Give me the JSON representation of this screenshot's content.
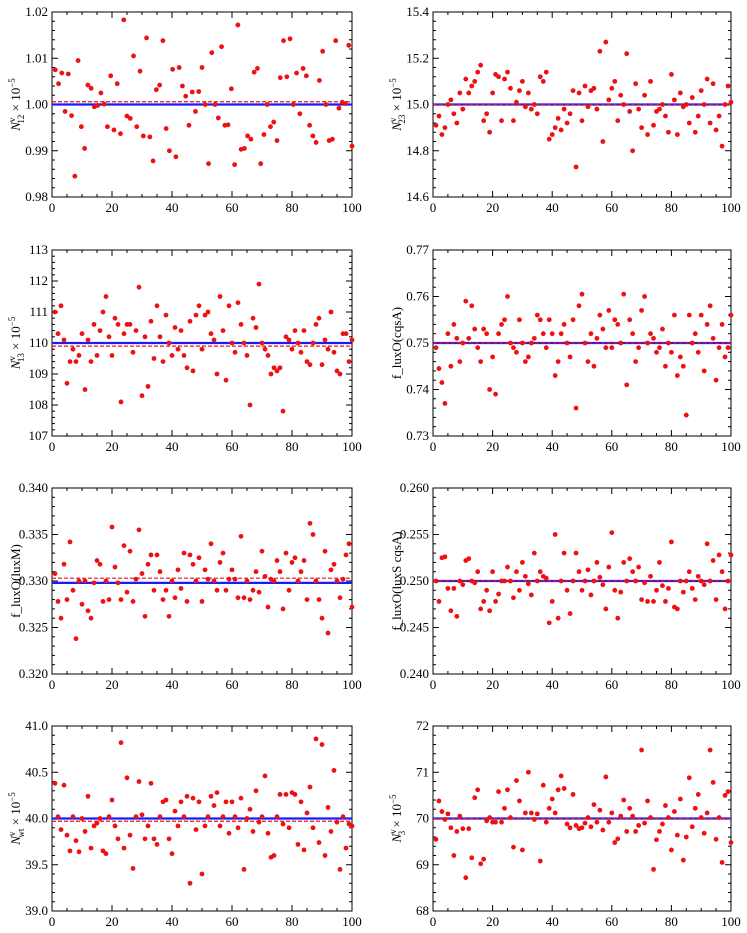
{
  "colors": {
    "points": "#ee1111",
    "blue_line": "#1a1aff",
    "red_line": "#ee1111",
    "frame": "#000000"
  },
  "chart_data": [
    {
      "type": "scatter",
      "ylabel": "N^v_12 × 10^−5",
      "ylabel_base": "N",
      "ylabel_sup": "v",
      "ylabel_sub": "12",
      "ylabel_tail": " × 10",
      "ylabel_exp": "−5",
      "xlim": [
        0,
        100
      ],
      "ylim": [
        0.98,
        1.02
      ],
      "xticks": [
        "0",
        "20",
        "40",
        "60",
        "80",
        "100"
      ],
      "yticks": [
        "0.98",
        "0.99",
        "1.00",
        "1.01",
        "1.02"
      ],
      "blue_line": 1.0,
      "red_line": 1.0006,
      "points": [
        1.0075,
        1.0045,
        1.0068,
        0.9985,
        1.0066,
        0.9976,
        0.9845,
        1.0095,
        0.9952,
        0.9905,
        1.0042,
        1.0035,
        0.9995,
        0.9998,
        1.0025,
        1.0001,
        0.9952,
        1.0062,
        0.9945,
        1.0045,
        0.9937,
        1.0183,
        0.9975,
        0.997,
        1.0105,
        0.9952,
        1.0072,
        0.9932,
        1.0144,
        0.993,
        0.9878,
        1.0032,
        1.0042,
        1.0138,
        0.9948,
        0.99,
        1.0076,
        0.9887,
        1.008,
        1.004,
        1.0018,
        0.9955,
        1.0027,
        0.9985,
        1.0028,
        1.008,
        1.0,
        0.9872,
        1.0112,
        1.0,
        0.9971,
        1.0125,
        0.9955,
        0.9956,
        1.0034,
        0.987,
        1.0172,
        0.9903,
        0.9905,
        0.9932,
        0.9925,
        1.007,
        1.0078,
        0.9872,
        0.9935,
        1.0,
        0.9952,
        0.9962,
        0.9922,
        1.0058,
        1.0138,
        1.006,
        1.0142,
        1.0,
        1.0068,
        0.998,
        1.0078,
        1.0062,
        0.9955,
        0.9932,
        0.9918,
        1.0052,
        1.0115,
        1.0,
        0.9922,
        0.9925,
        1.0138,
        0.9992,
        1.0005,
        1.0002,
        1.0128,
        0.991
      ]
    },
    {
      "type": "scatter",
      "ylabel": "N^v_23 × 10^−5",
      "ylabel_base": "N",
      "ylabel_sup": "v",
      "ylabel_sub": "23",
      "ylabel_tail": " × 10",
      "ylabel_exp": "−5",
      "xlim": [
        0,
        100
      ],
      "ylim": [
        14.6,
        15.4
      ],
      "xticks": [
        "0",
        "20",
        "40",
        "60",
        "80",
        "100"
      ],
      "yticks": [
        "14.6",
        "14.8",
        "15.0",
        "15.2",
        "15.4"
      ],
      "blue_line": 15.0,
      "red_line": 15.0,
      "points": [
        14.91,
        14.95,
        14.87,
        14.9,
        15.0,
        15.02,
        14.96,
        14.92,
        15.05,
        14.98,
        15.11,
        15.05,
        15.08,
        15.1,
        15.14,
        15.17,
        14.93,
        14.96,
        14.88,
        15.05,
        15.13,
        15.12,
        14.93,
        15.11,
        15.14,
        15.07,
        14.93,
        15.01,
        15.06,
        15.1,
        14.99,
        15.05,
        14.98,
        15.0,
        14.96,
        15.12,
        15.1,
        15.14,
        14.85,
        14.87,
        14.9,
        14.94,
        14.89,
        14.98,
        14.92,
        14.96,
        15.06,
        14.73,
        15.05,
        14.93,
        15.08,
        14.99,
        15.06,
        15.07,
        14.98,
        15.23,
        14.84,
        15.27,
        15.02,
        15.07,
        15.1,
        14.93,
        15.04,
        15.0,
        15.22,
        14.97,
        14.8,
        15.09,
        14.98,
        14.9,
        15.04,
        14.87,
        15.1,
        14.91,
        14.97,
        14.98,
        15.0,
        14.95,
        14.88,
        15.13,
        15.02,
        14.87,
        15.05,
        14.99,
        15.0,
        14.92,
        15.03,
        14.88,
        14.95,
        15.06,
        15.0,
        15.11,
        14.92,
        15.09,
        14.89,
        14.95,
        14.82,
        15.0,
        15.08,
        15.01
      ]
    },
    {
      "type": "scatter",
      "ylabel": "N^v_13 × 10^−5",
      "ylabel_base": "N",
      "ylabel_sup": "v",
      "ylabel_sub": "13",
      "ylabel_tail": " × 10",
      "ylabel_exp": "−5",
      "xlim": [
        0,
        100
      ],
      "ylim": [
        107,
        113
      ],
      "xticks": [
        "0",
        "20",
        "40",
        "60",
        "80",
        "100"
      ],
      "yticks": [
        "107",
        "108",
        "109",
        "110",
        "111",
        "112",
        "113"
      ],
      "blue_line": 110.0,
      "red_line": 109.9,
      "points": [
        111.0,
        110.3,
        111.2,
        110.1,
        108.7,
        109.4,
        109.8,
        109.4,
        109.6,
        110.3,
        108.5,
        110.1,
        109.4,
        110.6,
        109.6,
        110.4,
        111.0,
        111.5,
        110.2,
        109.6,
        110.8,
        110.6,
        108.1,
        110.3,
        110.6,
        110.6,
        109.7,
        110.4,
        111.8,
        108.3,
        110.2,
        108.6,
        110.7,
        109.5,
        111.2,
        110.2,
        109.4,
        110.9,
        110.0,
        109.6,
        110.5,
        109.8,
        110.4,
        109.6,
        109.2,
        110.7,
        109.1,
        110.9,
        111.2,
        109.8,
        110.9,
        111.0,
        110.3,
        110.1,
        109.0,
        111.5,
        110.4,
        108.8,
        111.2,
        110.0,
        109.7,
        111.3,
        110.6,
        110.0,
        109.6,
        108.0,
        110.8,
        110.5,
        111.9,
        110.0,
        109.8,
        109.6,
        109.0,
        109.2,
        109.1,
        109.2,
        107.8,
        110.2,
        110.1,
        109.8,
        110.4,
        110.0,
        109.7,
        110.4,
        109.4,
        109.3,
        110.0,
        110.6,
        110.8,
        109.3,
        110.1,
        109.8,
        111.0,
        109.7,
        109.1,
        109.0,
        110.3,
        110.3,
        109.4,
        110.1
      ]
    },
    {
      "type": "scatter",
      "ylabel": "f_luxO(cqsA)",
      "xlim": [
        0,
        100
      ],
      "ylim": [
        0.73,
        0.77
      ],
      "xticks": [
        "0",
        "20",
        "40",
        "60",
        "80",
        "100"
      ],
      "yticks": [
        "0.73",
        "0.74",
        "0.75",
        "0.76",
        "0.77"
      ],
      "blue_line": 0.75,
      "red_line": 0.75,
      "points": [
        0.749,
        0.7445,
        0.7415,
        0.737,
        0.752,
        0.745,
        0.754,
        0.751,
        0.746,
        0.75,
        0.759,
        0.751,
        0.758,
        0.753,
        0.749,
        0.746,
        0.753,
        0.752,
        0.74,
        0.747,
        0.739,
        0.752,
        0.754,
        0.755,
        0.76,
        0.75,
        0.749,
        0.748,
        0.755,
        0.75,
        0.746,
        0.747,
        0.75,
        0.751,
        0.756,
        0.755,
        0.752,
        0.749,
        0.755,
        0.752,
        0.743,
        0.746,
        0.752,
        0.754,
        0.75,
        0.747,
        0.755,
        0.736,
        0.758,
        0.7605,
        0.75,
        0.746,
        0.752,
        0.745,
        0.751,
        0.756,
        0.753,
        0.749,
        0.757,
        0.749,
        0.755,
        0.754,
        0.75,
        0.7605,
        0.741,
        0.755,
        0.752,
        0.746,
        0.749,
        0.757,
        0.76,
        0.75,
        0.752,
        0.751,
        0.748,
        0.749,
        0.753,
        0.745,
        0.75,
        0.748,
        0.756,
        0.743,
        0.747,
        0.745,
        0.7345,
        0.756,
        0.75,
        0.752,
        0.748,
        0.756,
        0.744,
        0.754,
        0.758,
        0.751,
        0.742,
        0.749,
        0.754,
        0.747,
        0.749,
        0.756
      ]
    },
    {
      "type": "scatter",
      "ylabel": "f_luxO(luxM)",
      "xlim": [
        0,
        100
      ],
      "ylim": [
        0.32,
        0.34
      ],
      "xticks": [
        "0",
        "20",
        "40",
        "60",
        "80",
        "100"
      ],
      "yticks": [
        "0.320",
        "0.325",
        "0.330",
        "0.335",
        "0.340"
      ],
      "blue_line": 0.3298,
      "red_line": 0.3303,
      "points": [
        0.3308,
        0.3278,
        0.326,
        0.3318,
        0.328,
        0.3342,
        0.329,
        0.3238,
        0.33,
        0.3275,
        0.33,
        0.3268,
        0.326,
        0.3298,
        0.3322,
        0.3318,
        0.3278,
        0.33,
        0.328,
        0.3358,
        0.3315,
        0.3298,
        0.328,
        0.3338,
        0.3288,
        0.3332,
        0.3278,
        0.3302,
        0.3355,
        0.3308,
        0.3262,
        0.3318,
        0.3328,
        0.329,
        0.3328,
        0.331,
        0.328,
        0.329,
        0.3262,
        0.33,
        0.3282,
        0.3312,
        0.3292,
        0.333,
        0.3278,
        0.3328,
        0.3318,
        0.33,
        0.3325,
        0.3278,
        0.3312,
        0.3302,
        0.334,
        0.33,
        0.329,
        0.332,
        0.333,
        0.329,
        0.3302,
        0.3312,
        0.3302,
        0.3282,
        0.3348,
        0.3282,
        0.33,
        0.328,
        0.329,
        0.331,
        0.3288,
        0.3332,
        0.3305,
        0.3272,
        0.3302,
        0.33,
        0.3322,
        0.331,
        0.327,
        0.333,
        0.329,
        0.332,
        0.3325,
        0.33,
        0.331,
        0.3322,
        0.328,
        0.3362,
        0.335,
        0.33,
        0.328,
        0.326,
        0.3332,
        0.3244,
        0.3312,
        0.3318,
        0.33,
        0.3282,
        0.3302,
        0.3328,
        0.334,
        0.3272
      ]
    },
    {
      "type": "scatter",
      "ylabel": "f_luxO(luxS cqsA)",
      "xlim": [
        0,
        100
      ],
      "ylim": [
        0.24,
        0.26
      ],
      "xticks": [
        "0",
        "20",
        "40",
        "60",
        "80",
        "100"
      ],
      "yticks": [
        "0.240",
        "0.245",
        "0.250",
        "0.255",
        "0.260"
      ],
      "blue_line": 0.25,
      "red_line": 0.25,
      "points": [
        0.25,
        0.2478,
        0.2525,
        0.2526,
        0.2492,
        0.2468,
        0.2492,
        0.2462,
        0.25,
        0.2496,
        0.2522,
        0.2524,
        0.25,
        0.2498,
        0.251,
        0.247,
        0.2478,
        0.249,
        0.2468,
        0.251,
        0.2478,
        0.2486,
        0.25,
        0.25,
        0.2515,
        0.25,
        0.2482,
        0.251,
        0.249,
        0.252,
        0.2505,
        0.2497,
        0.2485,
        0.253,
        0.25,
        0.251,
        0.2505,
        0.2503,
        0.2455,
        0.2478,
        0.255,
        0.246,
        0.25,
        0.253,
        0.249,
        0.2465,
        0.25,
        0.253,
        0.251,
        0.249,
        0.25,
        0.2512,
        0.2485,
        0.25,
        0.252,
        0.2504,
        0.2496,
        0.247,
        0.2515,
        0.2552,
        0.249,
        0.246,
        0.2488,
        0.252,
        0.25,
        0.2524,
        0.251,
        0.25,
        0.2515,
        0.248,
        0.2498,
        0.2478,
        0.2505,
        0.2478,
        0.249,
        0.252,
        0.2495,
        0.2478,
        0.2492,
        0.2542,
        0.2472,
        0.247,
        0.25,
        0.2488,
        0.25,
        0.251,
        0.2492,
        0.248,
        0.2505,
        0.25,
        0.2496,
        0.254,
        0.25,
        0.2522,
        0.248,
        0.2528,
        0.251,
        0.247,
        0.25,
        0.2528
      ]
    },
    {
      "type": "scatter",
      "ylabel": "N^v_wt × 10^−5",
      "ylabel_base": "N",
      "ylabel_sup": "v",
      "ylabel_sub": "wt",
      "ylabel_tail": " × 10",
      "ylabel_exp": "−5",
      "xlim": [
        0,
        100
      ],
      "ylim": [
        39.0,
        41.0
      ],
      "xticks": [
        "0",
        "20",
        "40",
        "60",
        "80",
        "100"
      ],
      "yticks": [
        "39.0",
        "39.5",
        "40.0",
        "40.5",
        "41.0"
      ],
      "blue_line": 40.0,
      "red_line": 39.97,
      "points": [
        40.38,
        40.02,
        39.88,
        40.36,
        39.82,
        39.65,
        40.02,
        39.76,
        39.64,
        40.0,
        39.86,
        40.24,
        39.68,
        39.92,
        39.95,
        40.0,
        39.65,
        39.62,
        40.02,
        40.2,
        39.92,
        39.78,
        40.82,
        39.68,
        40.44,
        39.82,
        39.46,
        40.02,
        40.4,
        40.04,
        39.78,
        39.92,
        40.38,
        39.78,
        39.72,
        40.02,
        40.18,
        40.2,
        39.78,
        39.62,
        40.08,
        39.92,
        40.18,
        40.02,
        40.24,
        39.3,
        40.22,
        39.88,
        40.18,
        39.4,
        39.92,
        40.02,
        40.24,
        40.14,
        40.28,
        39.92,
        40.02,
        40.18,
        39.84,
        40.18,
        40.02,
        39.9,
        40.22,
        39.45,
        40.0,
        40.1,
        39.86,
        40.3,
        39.96,
        40.02,
        40.46,
        39.84,
        39.58,
        39.6,
        40.02,
        40.26,
        39.94,
        40.26,
        39.9,
        40.28,
        40.26,
        39.72,
        40.18,
        39.66,
        40.06,
        40.34,
        39.9,
        40.86,
        39.74,
        40.8,
        39.6,
        40.12,
        39.86,
        40.52,
        39.96,
        39.45,
        40.02,
        39.68,
        39.94,
        39.92
      ]
    },
    {
      "type": "scatter",
      "ylabel": "N^v_3 × 10^−5",
      "ylabel_base": "N",
      "ylabel_sup": "v",
      "ylabel_sub": "3",
      "ylabel_tail": " × 10",
      "ylabel_exp": "−5",
      "xlim": [
        0,
        100
      ],
      "ylim": [
        68,
        72
      ],
      "xticks": [
        "0",
        "20",
        "40",
        "60",
        "80",
        "100"
      ],
      "yticks": [
        "68",
        "69",
        "70",
        "71",
        "72"
      ],
      "blue_line": 70.0,
      "red_line": 70.0,
      "points": [
        69.55,
        70.38,
        70.15,
        69.98,
        70.1,
        69.8,
        69.2,
        69.72,
        70.05,
        69.78,
        68.72,
        69.78,
        69.15,
        70.45,
        70.62,
        69.02,
        69.12,
        69.95,
        70.02,
        69.92,
        69.92,
        70.58,
        69.92,
        70.22,
        70.62,
        70.02,
        69.38,
        70.82,
        70.38,
        69.32,
        70.12,
        71.0,
        70.12,
        69.98,
        70.1,
        69.08,
        70.72,
        69.92,
        70.22,
        70.42,
        70.12,
        70.62,
        70.92,
        70.65,
        69.88,
        69.8,
        70.52,
        69.85,
        69.78,
        69.8,
        69.9,
        70.02,
        69.82,
        70.3,
        69.92,
        70.18,
        69.75,
        70.9,
        69.92,
        70.12,
        69.48,
        69.56,
        70.05,
        70.4,
        69.72,
        70.22,
        70.05,
        69.72,
        69.85,
        71.48,
        69.9,
        70.38,
        70.02,
        68.9,
        69.54,
        69.72,
        69.88,
        70.28,
        70.02,
        69.32,
        70.15,
        69.64,
        70.42,
        69.1,
        69.6,
        70.88,
        69.82,
        70.22,
        70.52,
        70.02,
        69.68,
        70.12,
        71.48,
        70.78,
        69.55,
        70.02,
        69.05,
        70.5,
        70.58,
        69.48
      ]
    }
  ]
}
